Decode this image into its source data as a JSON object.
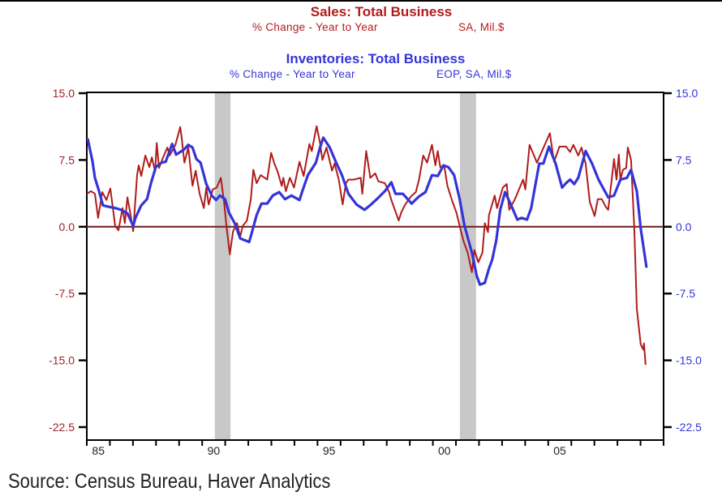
{
  "chart_data": {
    "type": "line",
    "titles": {
      "sales_title": "Sales: Total Business",
      "sales_subtitle_left": "% Change - Year to Year",
      "sales_subtitle_right": "SA, Mil.$",
      "inventories_title": "Inventories: Total Business",
      "inventories_subtitle_left": "% Change - Year to Year",
      "inventories_subtitle_right": "EOP, SA, Mil.$"
    },
    "source": "Source: Census Bureau, Haver Analytics",
    "xlim": [
      1985,
      2010
    ],
    "ylim": [
      -22.5,
      15.0
    ],
    "x_ticks": [
      1985,
      1986,
      1987,
      1988,
      1989,
      1990,
      1991,
      1992,
      1993,
      1994,
      1995,
      1996,
      1997,
      1998,
      1999,
      2000,
      2001,
      2002,
      2003,
      2004,
      2005,
      2006,
      2007,
      2008,
      2009,
      2010
    ],
    "x_tick_labels": [
      {
        "year": 1985,
        "label": "85"
      },
      {
        "year": 1990,
        "label": "90"
      },
      {
        "year": 1995,
        "label": "95"
      },
      {
        "year": 2000,
        "label": "00"
      },
      {
        "year": 2005,
        "label": "05"
      }
    ],
    "y_ticks": [
      15.0,
      7.5,
      0.0,
      -7.5,
      -15.0,
      -22.5
    ],
    "y_tick_labels": [
      "15.0",
      "7.5",
      "0.0",
      "-7.5",
      "-15.0",
      "-22.5"
    ],
    "reference_line": 0,
    "recessions": [
      [
        1990.55,
        1991.23
      ],
      [
        2001.17,
        2001.87
      ]
    ],
    "colors": {
      "sales": "#b01c1c",
      "inventories": "#3434d8",
      "zero_line": "#6b1a1a",
      "recession": "#c8c8c8"
    },
    "series": [
      {
        "name": "Sales: Total Business",
        "axis": "left",
        "points": [
          [
            1985.0,
            3.7
          ],
          [
            1985.18,
            4.0
          ],
          [
            1985.35,
            3.7
          ],
          [
            1985.49,
            1.0
          ],
          [
            1985.67,
            3.9
          ],
          [
            1985.85,
            3.0
          ],
          [
            1986.02,
            4.3
          ],
          [
            1986.23,
            0.1
          ],
          [
            1986.37,
            -0.4
          ],
          [
            1986.55,
            2.1
          ],
          [
            1986.65,
            0.4
          ],
          [
            1986.76,
            3.3
          ],
          [
            1986.9,
            1.3
          ],
          [
            1987.01,
            -0.5
          ],
          [
            1987.18,
            5.8
          ],
          [
            1987.25,
            6.9
          ],
          [
            1987.36,
            5.7
          ],
          [
            1987.54,
            8.0
          ],
          [
            1987.71,
            6.7
          ],
          [
            1987.82,
            7.8
          ],
          [
            1987.96,
            6.2
          ],
          [
            1988.03,
            9.4
          ],
          [
            1988.13,
            6.6
          ],
          [
            1988.31,
            7.8
          ],
          [
            1988.49,
            8.9
          ],
          [
            1988.59,
            8.0
          ],
          [
            1988.84,
            9.2
          ],
          [
            1989.05,
            11.2
          ],
          [
            1989.12,
            9.8
          ],
          [
            1989.23,
            7.2
          ],
          [
            1989.4,
            8.9
          ],
          [
            1989.58,
            4.6
          ],
          [
            1989.72,
            6.3
          ],
          [
            1989.89,
            3.7
          ],
          [
            1990.07,
            2.1
          ],
          [
            1990.18,
            4.4
          ],
          [
            1990.28,
            2.5
          ],
          [
            1990.46,
            4.2
          ],
          [
            1990.63,
            4.4
          ],
          [
            1990.81,
            5.5
          ],
          [
            1990.95,
            2.8
          ],
          [
            1991.05,
            0.1
          ],
          [
            1991.2,
            -3.1
          ],
          [
            1991.34,
            -0.5
          ],
          [
            1991.51,
            0.4
          ],
          [
            1991.65,
            -1.1
          ],
          [
            1991.76,
            0.1
          ],
          [
            1991.94,
            0.7
          ],
          [
            1992.11,
            3.1
          ],
          [
            1992.22,
            6.4
          ],
          [
            1992.36,
            4.9
          ],
          [
            1992.54,
            5.8
          ],
          [
            1992.82,
            5.3
          ],
          [
            1992.99,
            8.3
          ],
          [
            1993.13,
            7.1
          ],
          [
            1993.27,
            6.2
          ],
          [
            1993.45,
            4.6
          ],
          [
            1993.52,
            5.5
          ],
          [
            1993.63,
            4.0
          ],
          [
            1993.8,
            5.5
          ],
          [
            1993.98,
            4.4
          ],
          [
            1994.22,
            7.3
          ],
          [
            1994.4,
            5.7
          ],
          [
            1994.65,
            9.3
          ],
          [
            1994.75,
            8.5
          ],
          [
            1994.96,
            11.3
          ],
          [
            1995.11,
            9.4
          ],
          [
            1995.21,
            7.5
          ],
          [
            1995.39,
            8.9
          ],
          [
            1995.63,
            6.3
          ],
          [
            1995.74,
            7.1
          ],
          [
            1995.92,
            5.3
          ],
          [
            1996.09,
            2.5
          ],
          [
            1996.23,
            4.9
          ],
          [
            1996.34,
            5.3
          ],
          [
            1996.58,
            5.3
          ],
          [
            1996.87,
            5.5
          ],
          [
            1996.94,
            3.7
          ],
          [
            1997.11,
            8.5
          ],
          [
            1997.29,
            5.5
          ],
          [
            1997.5,
            6.0
          ],
          [
            1997.64,
            5.1
          ],
          [
            1997.92,
            4.9
          ],
          [
            1998.1,
            3.9
          ],
          [
            1998.2,
            3.0
          ],
          [
            1998.52,
            0.7
          ],
          [
            1998.63,
            1.6
          ],
          [
            1998.8,
            2.5
          ],
          [
            1999.05,
            3.4
          ],
          [
            1999.26,
            3.9
          ],
          [
            1999.4,
            5.3
          ],
          [
            1999.58,
            8.0
          ],
          [
            1999.75,
            7.2
          ],
          [
            1999.96,
            9.2
          ],
          [
            2000.11,
            6.9
          ],
          [
            2000.21,
            8.5
          ],
          [
            2000.32,
            6.7
          ],
          [
            2000.49,
            6.9
          ],
          [
            2000.63,
            4.6
          ],
          [
            2000.85,
            2.8
          ],
          [
            2001.02,
            1.6
          ],
          [
            2001.16,
            0.1
          ],
          [
            2001.34,
            -1.7
          ],
          [
            2001.51,
            -2.9
          ],
          [
            2001.69,
            -5.1
          ],
          [
            2001.8,
            -2.6
          ],
          [
            2001.97,
            -4.0
          ],
          [
            2002.15,
            -2.9
          ],
          [
            2002.25,
            0.4
          ],
          [
            2002.39,
            -0.6
          ],
          [
            2002.43,
            1.3
          ],
          [
            2002.68,
            3.5
          ],
          [
            2002.78,
            2.1
          ],
          [
            2003.03,
            4.4
          ],
          [
            2003.2,
            4.8
          ],
          [
            2003.31,
            1.9
          ],
          [
            2003.56,
            3.1
          ],
          [
            2003.73,
            4.2
          ],
          [
            2003.91,
            5.3
          ],
          [
            2004.01,
            4.2
          ],
          [
            2004.19,
            9.2
          ],
          [
            2004.51,
            7.2
          ],
          [
            2004.68,
            8.2
          ],
          [
            2005.07,
            10.5
          ],
          [
            2005.25,
            7.3
          ],
          [
            2005.49,
            9.0
          ],
          [
            2005.77,
            9.0
          ],
          [
            2005.95,
            8.4
          ],
          [
            2006.09,
            9.2
          ],
          [
            2006.3,
            8.0
          ],
          [
            2006.44,
            8.9
          ],
          [
            2006.62,
            7.1
          ],
          [
            2006.8,
            2.8
          ],
          [
            2007.01,
            1.2
          ],
          [
            2007.15,
            3.1
          ],
          [
            2007.32,
            3.1
          ],
          [
            2007.5,
            2.2
          ],
          [
            2007.6,
            1.9
          ],
          [
            2007.68,
            3.7
          ],
          [
            2007.85,
            7.6
          ],
          [
            2007.96,
            5.3
          ],
          [
            2008.06,
            8.1
          ],
          [
            2008.13,
            5.3
          ],
          [
            2008.24,
            6.4
          ],
          [
            2008.38,
            6.6
          ],
          [
            2008.45,
            8.9
          ],
          [
            2008.59,
            7.5
          ],
          [
            2008.73,
            -0.2
          ],
          [
            2008.84,
            -9.2
          ],
          [
            2009.01,
            -13.2
          ],
          [
            2009.12,
            -13.8
          ],
          [
            2009.15,
            -13.1
          ],
          [
            2009.22,
            -15.5
          ]
        ]
      },
      {
        "name": "Inventories: Total Business",
        "axis": "right",
        "points": [
          [
            1985.04,
            9.9
          ],
          [
            1985.25,
            7.3
          ],
          [
            1985.35,
            5.5
          ],
          [
            1985.53,
            4.0
          ],
          [
            1985.7,
            2.4
          ],
          [
            1986.02,
            2.2
          ],
          [
            1986.23,
            2.1
          ],
          [
            1986.48,
            1.9
          ],
          [
            1986.76,
            1.5
          ],
          [
            1987.01,
            0.1
          ],
          [
            1987.11,
            1.0
          ],
          [
            1987.36,
            2.4
          ],
          [
            1987.61,
            3.1
          ],
          [
            1987.78,
            4.9
          ],
          [
            1987.99,
            6.7
          ],
          [
            1988.24,
            7.2
          ],
          [
            1988.42,
            7.3
          ],
          [
            1988.7,
            9.3
          ],
          [
            1988.87,
            8.1
          ],
          [
            1989.05,
            8.4
          ],
          [
            1989.23,
            8.7
          ],
          [
            1989.4,
            9.2
          ],
          [
            1989.58,
            8.9
          ],
          [
            1989.75,
            7.6
          ],
          [
            1989.93,
            7.2
          ],
          [
            1990.18,
            4.8
          ],
          [
            1990.42,
            3.5
          ],
          [
            1990.6,
            3.0
          ],
          [
            1990.77,
            3.5
          ],
          [
            1990.99,
            3.1
          ],
          [
            1991.16,
            1.6
          ],
          [
            1991.41,
            0.4
          ],
          [
            1991.65,
            -1.3
          ],
          [
            1991.83,
            -1.5
          ],
          [
            1992.04,
            -1.7
          ],
          [
            1992.18,
            -0.4
          ],
          [
            1992.36,
            1.3
          ],
          [
            1992.57,
            2.6
          ],
          [
            1992.82,
            2.6
          ],
          [
            1993.06,
            3.5
          ],
          [
            1993.34,
            3.9
          ],
          [
            1993.59,
            3.1
          ],
          [
            1993.87,
            3.5
          ],
          [
            1994.22,
            3.0
          ],
          [
            1994.33,
            3.9
          ],
          [
            1994.58,
            5.8
          ],
          [
            1994.93,
            7.2
          ],
          [
            1995.11,
            8.9
          ],
          [
            1995.25,
            10.0
          ],
          [
            1995.53,
            8.9
          ],
          [
            1995.81,
            7.2
          ],
          [
            1996.06,
            5.8
          ],
          [
            1996.34,
            3.7
          ],
          [
            1996.69,
            2.5
          ],
          [
            1997.04,
            1.9
          ],
          [
            1997.32,
            2.5
          ],
          [
            1997.57,
            3.1
          ],
          [
            1997.92,
            4.0
          ],
          [
            1998.2,
            5.0
          ],
          [
            1998.38,
            3.7
          ],
          [
            1998.7,
            3.7
          ],
          [
            1999.08,
            2.6
          ],
          [
            1999.4,
            3.4
          ],
          [
            1999.68,
            3.9
          ],
          [
            1999.96,
            5.8
          ],
          [
            2000.21,
            5.7
          ],
          [
            2000.46,
            6.9
          ],
          [
            2000.67,
            6.7
          ],
          [
            2000.92,
            5.8
          ],
          [
            2001.16,
            3.1
          ],
          [
            2001.37,
            0.1
          ],
          [
            2001.69,
            -2.9
          ],
          [
            2001.9,
            -5.5
          ],
          [
            2002.04,
            -6.5
          ],
          [
            2002.25,
            -6.3
          ],
          [
            2002.43,
            -4.7
          ],
          [
            2002.57,
            -3.7
          ],
          [
            2002.75,
            -1.5
          ],
          [
            2002.92,
            1.9
          ],
          [
            2003.13,
            3.9
          ],
          [
            2003.38,
            2.5
          ],
          [
            2003.66,
            0.8
          ],
          [
            2003.84,
            1.0
          ],
          [
            2004.08,
            0.8
          ],
          [
            2004.26,
            2.1
          ],
          [
            2004.61,
            7.1
          ],
          [
            2004.79,
            7.1
          ],
          [
            2005.03,
            9.0
          ],
          [
            2005.32,
            7.1
          ],
          [
            2005.6,
            4.4
          ],
          [
            2005.77,
            4.9
          ],
          [
            2005.95,
            5.3
          ],
          [
            2006.13,
            4.8
          ],
          [
            2006.3,
            5.5
          ],
          [
            2006.62,
            8.5
          ],
          [
            2006.9,
            7.1
          ],
          [
            2007.18,
            5.3
          ],
          [
            2007.6,
            3.3
          ],
          [
            2007.85,
            3.5
          ],
          [
            2008.13,
            5.3
          ],
          [
            2008.41,
            5.5
          ],
          [
            2008.59,
            6.4
          ],
          [
            2008.84,
            4.0
          ],
          [
            2009.01,
            -0.2
          ],
          [
            2009.26,
            -4.6
          ]
        ]
      }
    ]
  }
}
